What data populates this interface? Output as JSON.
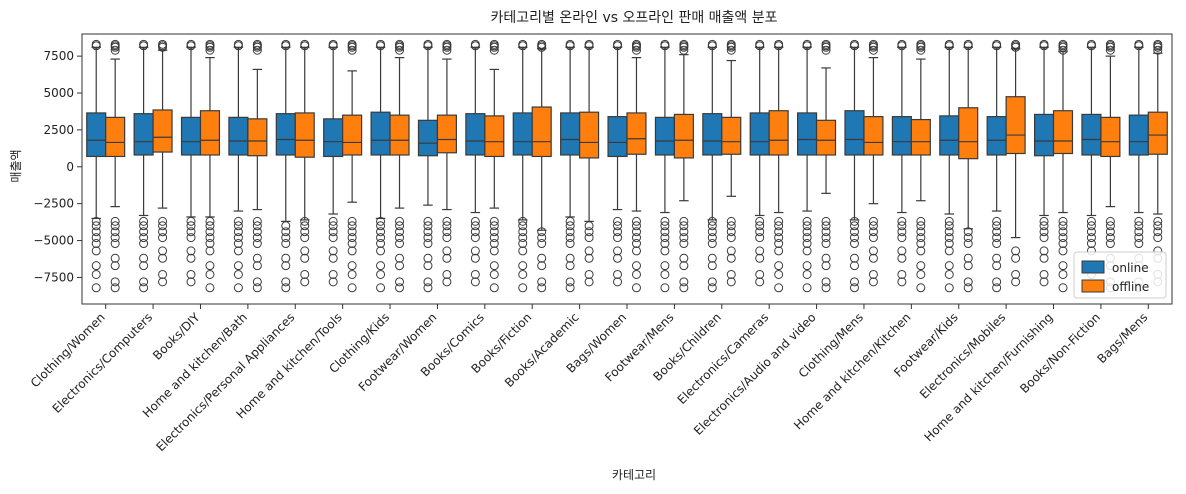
{
  "chart_data": {
    "type": "boxplot",
    "title": "카테고리별 온라인 vs 오프라인 판매 매출액 분포",
    "xlabel": "카테고리",
    "ylabel": "매출액",
    "ylim": [
      -9300,
      9000
    ],
    "yticks": [
      -7500,
      -5000,
      -2500,
      0,
      2500,
      5000,
      7500
    ],
    "ytick_labels": [
      "−7500",
      "−5000",
      "−2500",
      "0",
      "2500",
      "5000",
      "7500"
    ],
    "legend_position": "lower-right",
    "categories": [
      "Clothing/Women",
      "Electronics/Computers",
      "Books/DIY",
      "Home and kitchen/Bath",
      "Electronics/Personal Appliances",
      "Home and kitchen/Tools",
      "Clothing/Kids",
      "Footwear/Women",
      "Books/Comics",
      "Books/Fiction",
      "Books/Academic",
      "Bags/Women",
      "Footwear/Mens",
      "Books/Children",
      "Electronics/Cameras",
      "Electronics/Audio and video",
      "Clothing/Mens",
      "Home and kitchen/Kitchen",
      "Footwear/Kids",
      "Electronics/Mobiles",
      "Home and kitchen/Furnishing",
      "Books/Non-Fiction",
      "Bags/Mens"
    ],
    "series": [
      {
        "name": "online",
        "color": "#1f77b4",
        "boxes": [
          {
            "q1": 700,
            "median": 1800,
            "q3": 3650,
            "whislo": -3500,
            "whishi": 8100
          },
          {
            "q1": 800,
            "median": 1700,
            "q3": 3600,
            "whislo": -3300,
            "whishi": 8100
          },
          {
            "q1": 800,
            "median": 1700,
            "q3": 3350,
            "whislo": -3400,
            "whishi": 8100
          },
          {
            "q1": 800,
            "median": 1750,
            "q3": 3350,
            "whislo": -3000,
            "whishi": 8100
          },
          {
            "q1": 800,
            "median": 1850,
            "q3": 3600,
            "whislo": -3700,
            "whishi": 8100
          },
          {
            "q1": 700,
            "median": 1700,
            "q3": 3250,
            "whislo": -3200,
            "whishi": 8100
          },
          {
            "q1": 800,
            "median": 1800,
            "q3": 3700,
            "whislo": -3500,
            "whishi": 8100
          },
          {
            "q1": 750,
            "median": 1600,
            "q3": 3150,
            "whislo": -2600,
            "whishi": 8100
          },
          {
            "q1": 800,
            "median": 1750,
            "q3": 3600,
            "whislo": -3100,
            "whishi": 8100
          },
          {
            "q1": 800,
            "median": 1700,
            "q3": 3650,
            "whislo": -3600,
            "whishi": 8100
          },
          {
            "q1": 800,
            "median": 1850,
            "q3": 3650,
            "whislo": -3400,
            "whishi": 8100
          },
          {
            "q1": 700,
            "median": 1650,
            "q3": 3400,
            "whislo": -2900,
            "whishi": 8100
          },
          {
            "q1": 800,
            "median": 1750,
            "q3": 3350,
            "whislo": -3100,
            "whishi": 8100
          },
          {
            "q1": 800,
            "median": 1750,
            "q3": 3600,
            "whislo": -3600,
            "whishi": 8100
          },
          {
            "q1": 800,
            "median": 1700,
            "q3": 3650,
            "whislo": -3300,
            "whishi": 8100
          },
          {
            "q1": 800,
            "median": 1850,
            "q3": 3650,
            "whislo": -3000,
            "whishi": 8100
          },
          {
            "q1": 800,
            "median": 1850,
            "q3": 3800,
            "whislo": -3600,
            "whishi": 8100
          },
          {
            "q1": 800,
            "median": 1700,
            "q3": 3400,
            "whislo": -3100,
            "whishi": 8100
          },
          {
            "q1": 800,
            "median": 1800,
            "q3": 3450,
            "whislo": -3200,
            "whishi": 8100
          },
          {
            "q1": 800,
            "median": 1800,
            "q3": 3400,
            "whislo": -3000,
            "whishi": 8100
          },
          {
            "q1": 750,
            "median": 1750,
            "q3": 3550,
            "whislo": -3300,
            "whishi": 8100
          },
          {
            "q1": 800,
            "median": 1850,
            "q3": 3550,
            "whislo": -3300,
            "whishi": 8100
          },
          {
            "q1": 800,
            "median": 1700,
            "q3": 3500,
            "whislo": -3100,
            "whishi": 8100
          }
        ]
      },
      {
        "name": "offline",
        "color": "#ff7f0e",
        "boxes": [
          {
            "q1": 700,
            "median": 1650,
            "q3": 3350,
            "whislo": -2700,
            "whishi": 7300
          },
          {
            "q1": 1000,
            "median": 2000,
            "q3": 3850,
            "whislo": -2800,
            "whishi": 7900
          },
          {
            "q1": 800,
            "median": 1800,
            "q3": 3800,
            "whislo": -3400,
            "whishi": 7400
          },
          {
            "q1": 750,
            "median": 1750,
            "q3": 3250,
            "whislo": -2900,
            "whishi": 6600
          },
          {
            "q1": 650,
            "median": 1800,
            "q3": 3650,
            "whislo": -3600,
            "whishi": 8100
          },
          {
            "q1": 800,
            "median": 1650,
            "q3": 3500,
            "whislo": -2400,
            "whishi": 6500
          },
          {
            "q1": 800,
            "median": 1800,
            "q3": 3500,
            "whislo": -2800,
            "whishi": 7400
          },
          {
            "q1": 950,
            "median": 1850,
            "q3": 3500,
            "whislo": -2900,
            "whishi": 7300
          },
          {
            "q1": 700,
            "median": 1700,
            "q3": 3450,
            "whislo": -2800,
            "whishi": 6600
          },
          {
            "q1": 700,
            "median": 1700,
            "q3": 4050,
            "whislo": -4300,
            "whishi": 8000
          },
          {
            "q1": 600,
            "median": 1650,
            "q3": 3700,
            "whislo": -3700,
            "whishi": 8100
          },
          {
            "q1": 850,
            "median": 1900,
            "q3": 3650,
            "whislo": -3000,
            "whishi": 7400
          },
          {
            "q1": 600,
            "median": 1800,
            "q3": 3550,
            "whislo": -2300,
            "whishi": 7600
          },
          {
            "q1": 850,
            "median": 1700,
            "q3": 3350,
            "whislo": -2000,
            "whishi": 7200
          },
          {
            "q1": 800,
            "median": 1800,
            "q3": 3800,
            "whislo": -3100,
            "whishi": 8100
          },
          {
            "q1": 800,
            "median": 1800,
            "q3": 3150,
            "whislo": -1800,
            "whishi": 6700
          },
          {
            "q1": 800,
            "median": 1650,
            "q3": 3400,
            "whislo": -2500,
            "whishi": 7400
          },
          {
            "q1": 800,
            "median": 1700,
            "q3": 3200,
            "whislo": -2300,
            "whishi": 7300
          },
          {
            "q1": 550,
            "median": 1700,
            "q3": 4000,
            "whislo": -4200,
            "whishi": 8100
          },
          {
            "q1": 900,
            "median": 2150,
            "q3": 4750,
            "whislo": -4800,
            "whishi": 8000
          },
          {
            "q1": 900,
            "median": 1750,
            "q3": 3800,
            "whislo": -3100,
            "whishi": 7800
          },
          {
            "q1": 700,
            "median": 1700,
            "q3": 3350,
            "whislo": -2700,
            "whishi": 7500
          },
          {
            "q1": 850,
            "median": 2150,
            "q3": 3700,
            "whislo": -3200,
            "whishi": 7700
          }
        ]
      }
    ]
  }
}
